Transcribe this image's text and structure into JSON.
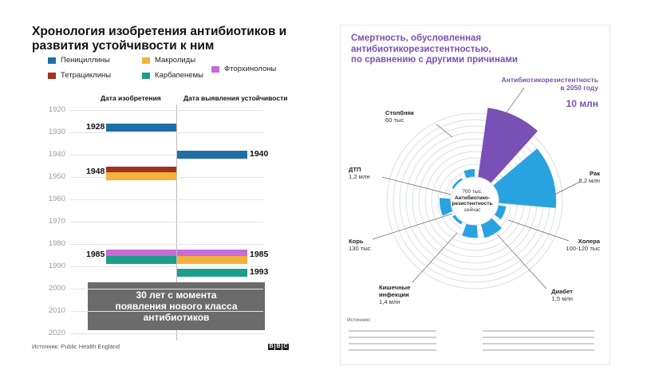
{
  "left": {
    "title": "Хронология изобретения антибиотиков и развития устойчивости к ним",
    "legend": [
      {
        "label": "Пенициллины",
        "color": "#1f6fa6"
      },
      {
        "label": "Макролиды",
        "color": "#f2b13a"
      },
      {
        "label": "Тетрациклины",
        "color": "#a3311b"
      },
      {
        "label": "Карбапенемы",
        "color": "#1b9e8a"
      },
      {
        "label": "Фторхинолоны",
        "color": "#c86ad8"
      }
    ],
    "col_invention": "Дата изобретения",
    "col_resistance": "Дата выявления устойчивости",
    "years": [
      "1920",
      "1930",
      "1940",
      "1950",
      "1960",
      "1970",
      "1980",
      "1990",
      "2000",
      "2010",
      "2020"
    ],
    "callout_lines": [
      "30 лет с момента",
      "появления нового класса",
      "антибиотиков"
    ],
    "source": "Источник: Public Health England",
    "bbc": [
      "B",
      "B",
      "C"
    ]
  },
  "chart_data": [
    {
      "type": "bar",
      "title": "Хронология изобретения антибиотиков и развития устойчивости к ним",
      "ylim": [
        1920,
        2020
      ],
      "series": [
        {
          "name": "Пенициллины",
          "invented": 1928,
          "resistance": 1940
        },
        {
          "name": "Тетрациклины",
          "invented": 1948,
          "resistance": null
        },
        {
          "name": "Макролиды",
          "invented": 1948,
          "resistance": 1985
        },
        {
          "name": "Фторхинолоны",
          "invented": 1985,
          "resistance": 1985
        },
        {
          "name": "Карбапенемы",
          "invented": 1985,
          "resistance": 1993
        }
      ],
      "labels": {
        "1928": "1928",
        "1940": "1940",
        "1948": "1948",
        "1985a": "1985",
        "1985b": "1985",
        "1993": "1993"
      }
    },
    {
      "type": "pie",
      "title": "Смертность, обусловленная антибиотикорезистентностью, по сравнению с другими причинами",
      "categories": [
        "Антибиотикорезистентность в 2050 году",
        "Рак",
        "Холера",
        "Диабет",
        "Кишечные инфекции",
        "Корь",
        "ДТП",
        "Столбняк",
        "Антибиотикорезистентность сейчас"
      ],
      "values_text": [
        "10 млн",
        "8,2 млн",
        "100-120 тыс",
        "1,5 млн",
        "1,4 млн",
        "130 тыс",
        "1,2 млн",
        "60 тыс",
        "700 тыс."
      ]
    }
  ],
  "right": {
    "title_lines": [
      "Смертность, обусловленная",
      "антибиотикорезистентностью,",
      "по сравнению с другими причинами"
    ],
    "amr2050_lines": [
      "Антибиотикорезистентность",
      "в 2050 году"
    ],
    "amr2050_value": "10 млн",
    "labels": {
      "stolbnyak": {
        "name": "Столбняк",
        "value": "60 тыс"
      },
      "dtp": {
        "name": "ДТП",
        "value": "1,2 млн"
      },
      "rak": {
        "name": "Рак",
        "value": "8,2 млн"
      },
      "kor": {
        "name": "Корь",
        "value": "130 тыс"
      },
      "kholera": {
        "name": "Холера",
        "value": "100-120 тыс"
      },
      "kishech": {
        "name1": "Кишечные",
        "name2": "инфекции",
        "value": "1,4 млн"
      },
      "diabet": {
        "name": "Диабет",
        "value": "1,5 млн"
      }
    },
    "center": {
      "value": "700 тыс.",
      "line1": "Антибиотико-",
      "line2": "резистентность",
      "line3": "сейчас"
    },
    "sources_title": "Источник:",
    "colors": {
      "purple": "#7a50b6",
      "blue": "#29a3e0",
      "ring": "#d9dfe8"
    }
  }
}
